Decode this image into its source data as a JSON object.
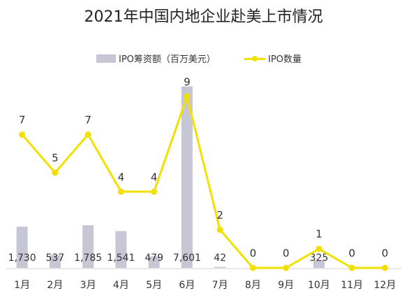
{
  "chart_data": {
    "type": "bar+line",
    "title": "2021年中国内地企业赴美上市情况",
    "categories": [
      "1月",
      "2月",
      "3月",
      "4月",
      "5月",
      "6月",
      "7月",
      "8月",
      "9月",
      "10月",
      "11月",
      "12月"
    ],
    "series": [
      {
        "name": "IPO筹资额（百万美元）",
        "type": "bar",
        "color": "#c6c6d4",
        "values": [
          1730,
          537,
          1785,
          1541,
          479,
          7601,
          42,
          0,
          0,
          325,
          0,
          0
        ],
        "labels": [
          "1,730",
          "537",
          "1,785",
          "1,541",
          "479",
          "7,601",
          "42",
          "",
          "",
          "325",
          "",
          ""
        ]
      },
      {
        "name": "IPO数量",
        "type": "line",
        "color": "#f2e000",
        "values": [
          7,
          5,
          7,
          4,
          4,
          9,
          2,
          0,
          0,
          1,
          0,
          0
        ]
      }
    ],
    "legend_position": "top",
    "grid": false
  }
}
